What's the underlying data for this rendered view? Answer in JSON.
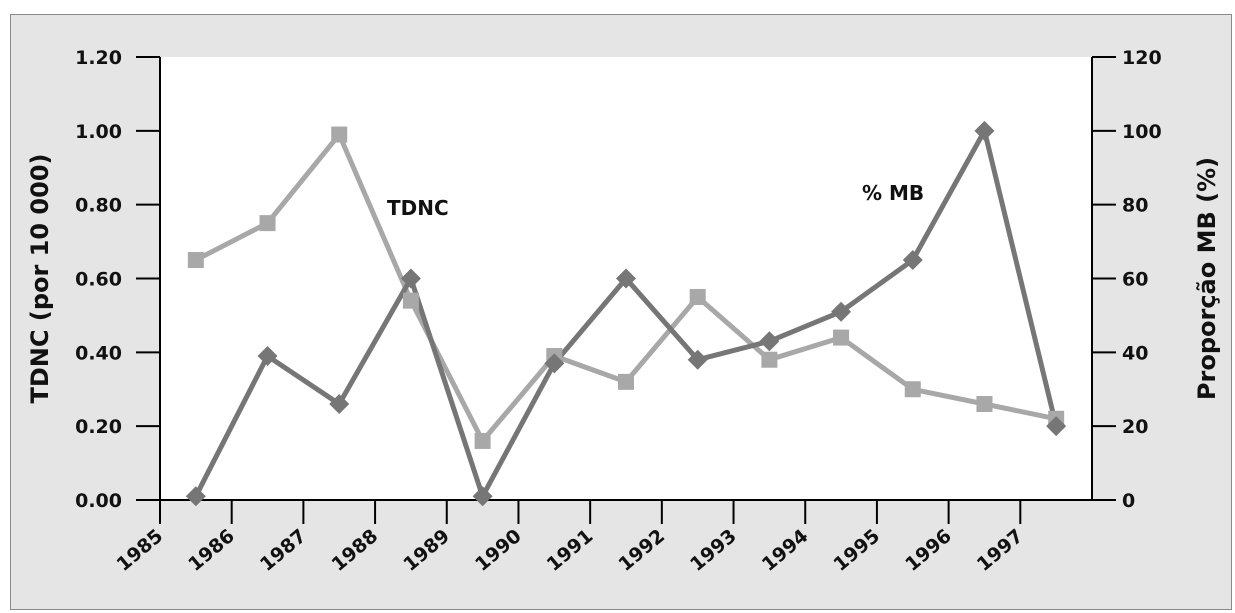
{
  "chart_data": {
    "type": "line",
    "title": "",
    "xlabel": "",
    "ylabel": "TDNC (por 10 000)",
    "y2label": "Proporção MB (%)",
    "xlim": [
      1985,
      1998
    ],
    "ylim": [
      0,
      1.2
    ],
    "y2lim": [
      0,
      120
    ],
    "x_ticks": [
      "1985",
      "1986",
      "1987",
      "1988",
      "1989",
      "1990",
      "1991",
      "1992",
      "1993",
      "1994",
      "1995",
      "1996",
      "1997"
    ],
    "y_ticks": [
      "0.00",
      "0.20",
      "0.40",
      "0.60",
      "0.80",
      "1.00",
      "1.20"
    ],
    "y2_ticks": [
      "0",
      "20",
      "40",
      "60",
      "80",
      "100",
      "120"
    ],
    "grid": false,
    "series": [
      {
        "name": "TDNC",
        "axis": "left",
        "marker": "square",
        "color": "#a8a8a8",
        "x": [
          1985.5,
          1986.5,
          1987.5,
          1988.5,
          1989.5,
          1990.5,
          1991.5,
          1992.5,
          1993.5,
          1994.5,
          1995.5,
          1996.5,
          1997.5
        ],
        "values": [
          0.65,
          0.75,
          0.99,
          0.54,
          0.16,
          0.39,
          0.32,
          0.55,
          0.38,
          0.44,
          0.3,
          0.26,
          0.22
        ]
      },
      {
        "name": "% MB",
        "axis": "right",
        "marker": "diamond",
        "color": "#767676",
        "x": [
          1985.5,
          1986.5,
          1987.5,
          1988.5,
          1989.5,
          1990.5,
          1991.5,
          1992.5,
          1993.5,
          1994.5,
          1995.5,
          1996.5,
          1997.5
        ],
        "values": [
          1,
          39,
          26,
          60,
          1,
          37,
          60,
          38,
          43,
          51,
          65,
          100,
          20
        ]
      }
    ],
    "annotations": [
      "TDNC",
      "% MB"
    ]
  }
}
